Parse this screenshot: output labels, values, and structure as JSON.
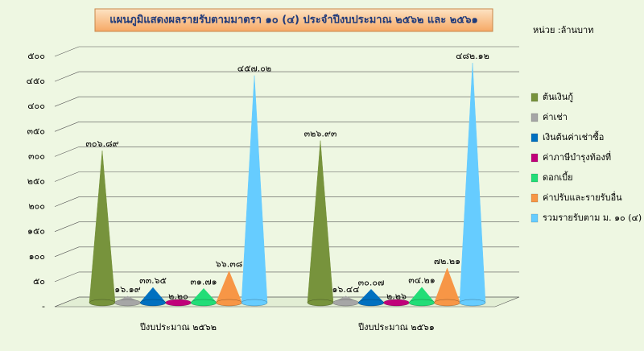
{
  "chart_data": {
    "type": "cone3d",
    "title": "แผนภูมิแสดงผลรายรับตามมาตรา ๑๐ (๔) ประจำปีงบประมาณ ๒๕๖๒ และ ๒๕๖๑",
    "unit_label": "หน่วย :ล้านบาท",
    "categories": [
      "ปีงบประมาณ ๒๕๖๒",
      "ปีงบประมาณ ๒๕๖๑"
    ],
    "series": [
      {
        "name": "ต้นเงินกู้",
        "color": "#77933c",
        "values": [
          306.89,
          326.93
        ],
        "value_labels": [
          "๓๐๖.๘๙",
          "๓๒๖.๙๓"
        ]
      },
      {
        "name": "ค่าเช่า",
        "color": "#a6a6a6",
        "values": [
          16.19,
          16.44
        ],
        "value_labels": [
          "๑๖.๑๙",
          "๑๖.๔๔"
        ]
      },
      {
        "name": "เงินต้นค่าเช่าซื้อ",
        "color": "#0070c0",
        "values": [
          33.65,
          30.07
        ],
        "value_labels": [
          "๓๓.๖๕",
          "๓๐.๐๗"
        ]
      },
      {
        "name": "ค่าภาษีบำรุงท้องที่",
        "color": "#c0007a",
        "values": [
          2.2,
          2.26
        ],
        "value_labels": [
          "๒.๒๐",
          "๒.๒๖"
        ]
      },
      {
        "name": "ดอกเบี้ย",
        "color": "#22dd77",
        "values": [
          31.71,
          34.21
        ],
        "value_labels": [
          "๓๑.๗๑",
          "๓๔.๒๑"
        ]
      },
      {
        "name": "ค่าปรับและรายรับอื่น",
        "color": "#f79646",
        "values": [
          66.38,
          72.21
        ],
        "value_labels": [
          "๖๖.๓๘",
          "๗๒.๒๑"
        ]
      },
      {
        "name": "รวมรายรับตาม ม. ๑๐ (๔)",
        "color": "#66ccff",
        "values": [
          457.02,
          482.12
        ],
        "value_labels": [
          "๔๕๗.๐๒",
          "๔๘๒.๑๒"
        ]
      }
    ],
    "ylim": [
      0,
      500
    ],
    "yticks": [
      {
        "value": 0,
        "label": "-"
      },
      {
        "value": 50,
        "label": "๕๐"
      },
      {
        "value": 100,
        "label": "๑๐๐"
      },
      {
        "value": 150,
        "label": "๑๕๐"
      },
      {
        "value": 200,
        "label": "๒๐๐"
      },
      {
        "value": 250,
        "label": "๒๕๐"
      },
      {
        "value": 300,
        "label": "๓๐๐"
      },
      {
        "value": 350,
        "label": "๓๕๐"
      },
      {
        "value": 400,
        "label": "๔๐๐"
      },
      {
        "value": 450,
        "label": "๔๕๐"
      },
      {
        "value": 500,
        "label": "๕๐๐"
      }
    ],
    "grid": true
  }
}
